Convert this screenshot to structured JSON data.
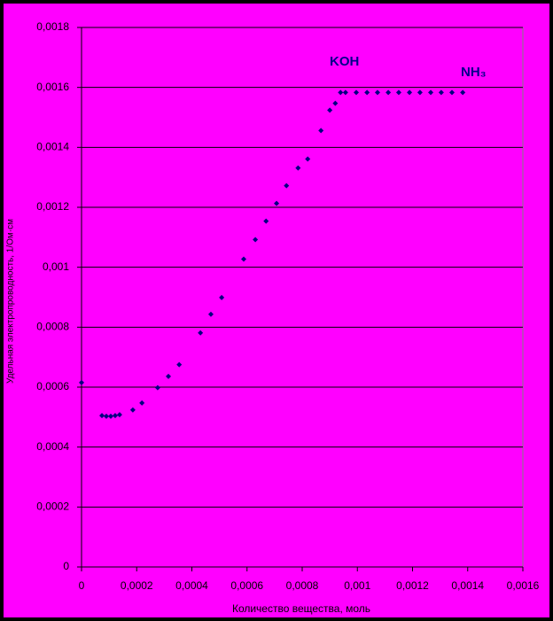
{
  "chart_data": {
    "type": "scatter",
    "x_label": "Количество вещества, моль",
    "y_label": "Удельная электропроводность, 1/Ом·см",
    "annotations": [
      "KOH",
      "NH₃"
    ],
    "color": "#000080",
    "grid": true,
    "x": [
      0,
      7.4e-05,
      9e-05,
      0.000106,
      0.000122,
      0.000138,
      0.000186,
      0.000219,
      0.000276,
      0.000315,
      0.000354,
      0.000431,
      0.000469,
      0.000508,
      0.000588,
      0.00063,
      0.000669,
      0.000707,
      0.000743,
      0.000785,
      0.00082,
      0.000868,
      0.0009,
      0.00092,
      0.000939,
      0.000957,
      0.000996,
      0.001035,
      0.001073,
      0.001112,
      0.00115,
      0.001189,
      0.001227,
      0.001266,
      0.001304,
      0.001343,
      0.001382
    ],
    "values": [
      0.000615,
      0.000505,
      0.000503,
      0.000503,
      0.000505,
      0.000508,
      0.000524,
      0.000547,
      0.000598,
      0.000636,
      0.000675,
      0.000781,
      0.000843,
      0.000899,
      0.001027,
      0.001092,
      0.001154,
      0.001213,
      0.001272,
      0.001331,
      0.001361,
      0.001456,
      0.001524,
      0.001547,
      0.001583,
      0.001583,
      0.001583,
      0.001583,
      0.001583,
      0.001583,
      0.001583,
      0.001583,
      0.001583,
      0.001583,
      0.001583,
      0.001583,
      0.001583
    ],
    "xlim": [
      0,
      0.0016
    ],
    "xticks": [
      0,
      {
        "value": 0.0002,
        "label": "0,0002"
      },
      {
        "value": 0.0004,
        "label": "0,0004"
      },
      {
        "value": 0.0006,
        "label": "0,0006"
      },
      {
        "value": 0.0008,
        "label": "0,0008"
      },
      {
        "value": 0.001,
        "label": "0,001"
      },
      {
        "value": 0.0012,
        "label": "0,0012"
      },
      {
        "value": 0.0014,
        "label": "0,0014"
      },
      {
        "value": 0.0016,
        "label": "0,0016"
      }
    ],
    "ylim": [
      0,
      0.0018
    ],
    "yticks": [
      0,
      {
        "value": 0.0002,
        "label": "0,0002"
      },
      {
        "value": 0.0004,
        "label": "0,0004"
      },
      {
        "value": 0.0006,
        "label": "0,0006"
      },
      {
        "value": 0.0008,
        "label": "0,0008"
      },
      {
        "value": 0.001,
        "label": "0,001"
      },
      {
        "value": 0.0012,
        "label": "0,0012"
      },
      {
        "value": 0.0014,
        "label": "0,0014"
      },
      {
        "value": 0.0016,
        "label": "0,0016"
      },
      {
        "value": 0.0018,
        "label": "0,0018"
      }
    ]
  }
}
